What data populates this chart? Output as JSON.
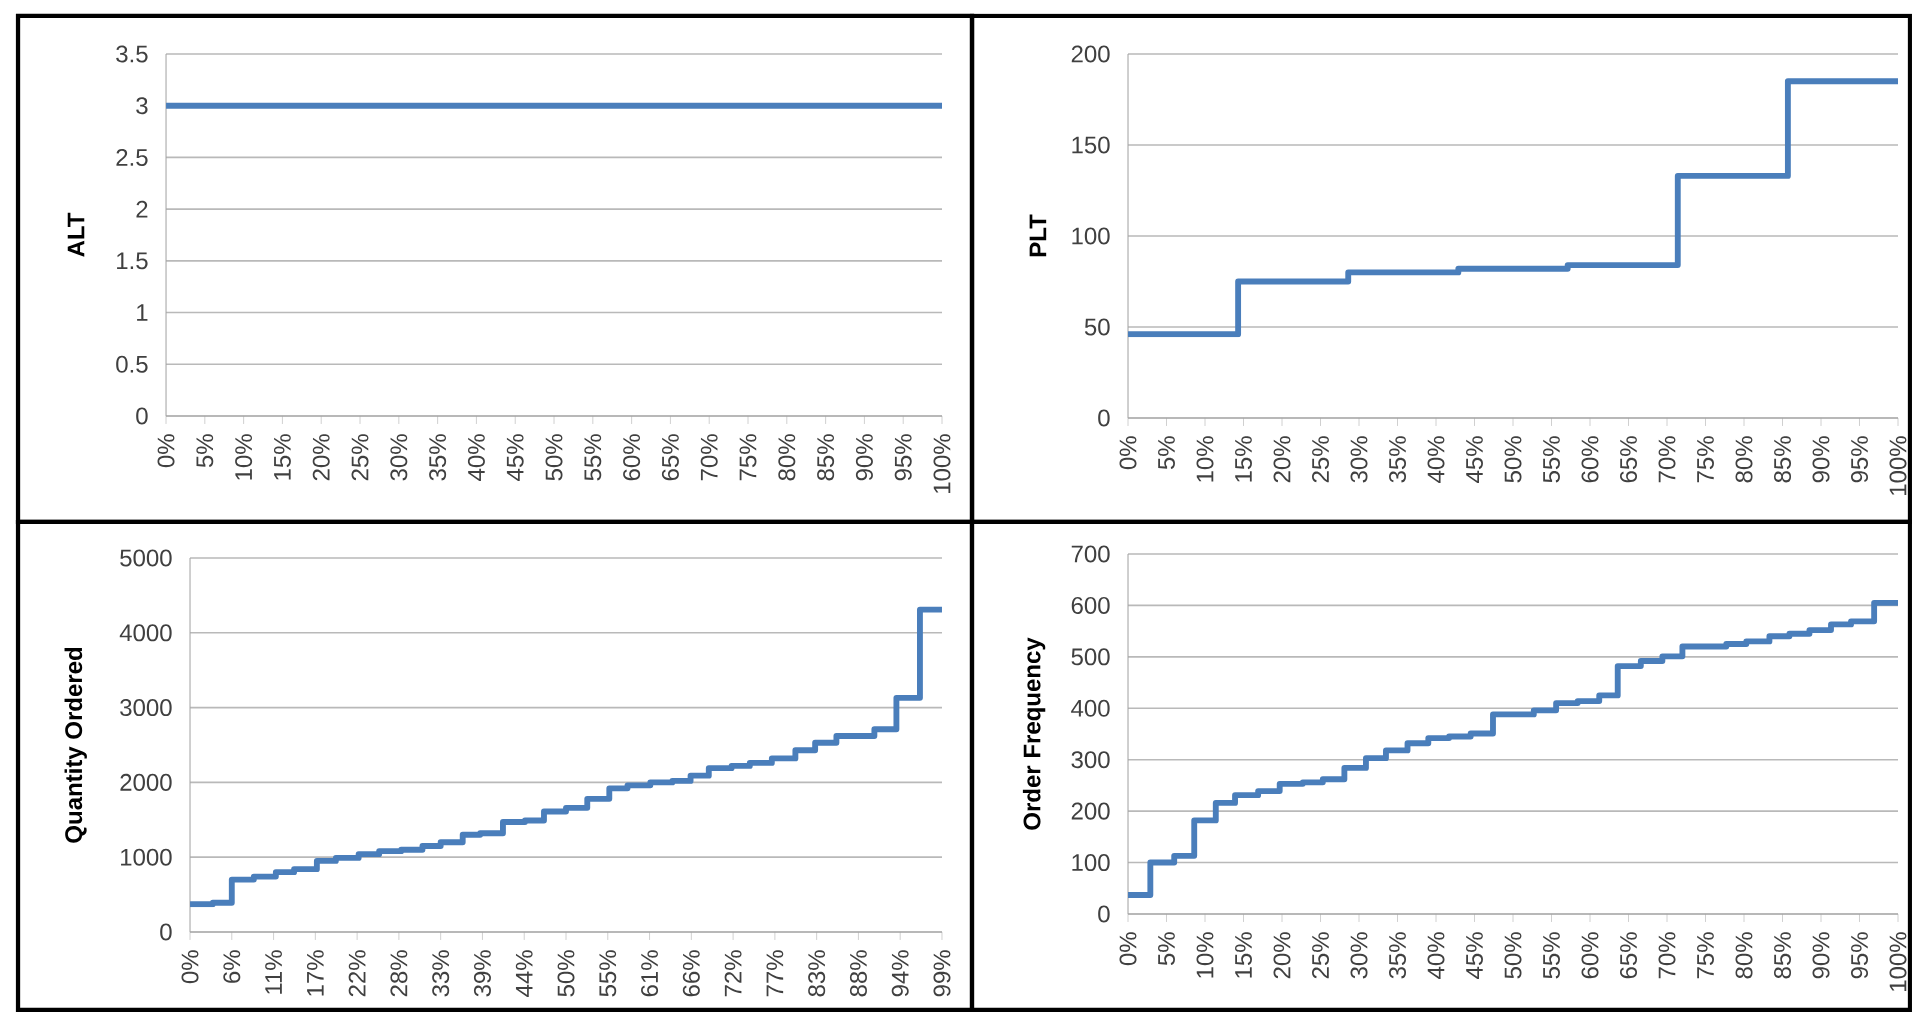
{
  "chart_data": [
    {
      "type": "line",
      "ylabel": "ALT",
      "grid": "y",
      "xlim": [
        0,
        100
      ],
      "ylim": [
        0,
        3.5
      ],
      "yticks": [
        0,
        0.5,
        1,
        1.5,
        2,
        2.5,
        3,
        3.5
      ],
      "xticks": [
        {
          "value": 0,
          "label": "0%"
        },
        {
          "value": 5,
          "label": "5%"
        },
        {
          "value": 10,
          "label": "10%"
        },
        {
          "value": 15,
          "label": "15%"
        },
        {
          "value": 20,
          "label": "20%"
        },
        {
          "value": 25,
          "label": "25%"
        },
        {
          "value": 30,
          "label": "30%"
        },
        {
          "value": 35,
          "label": "35%"
        },
        {
          "value": 40,
          "label": "40%"
        },
        {
          "value": 45,
          "label": "45%"
        },
        {
          "value": 50,
          "label": "50%"
        },
        {
          "value": 55,
          "label": "55%"
        },
        {
          "value": 60,
          "label": "60%"
        },
        {
          "value": 65,
          "label": "65%"
        },
        {
          "value": 70,
          "label": "70%"
        },
        {
          "value": 75,
          "label": "75%"
        },
        {
          "value": 80,
          "label": "80%"
        },
        {
          "value": 85,
          "label": "85%"
        },
        {
          "value": 90,
          "label": "90%"
        },
        {
          "value": 95,
          "label": "95%"
        },
        {
          "value": 100,
          "label": "100%"
        }
      ],
      "series": [
        {
          "color": "#4a7ebb",
          "x": [
            0,
            100
          ],
          "values": [
            3,
            3
          ]
        }
      ]
    },
    {
      "type": "step",
      "ylabel": "PLT",
      "grid": "y",
      "xlim": [
        0,
        100
      ],
      "ylim": [
        0,
        200
      ],
      "yticks": [
        0,
        50,
        100,
        150,
        200
      ],
      "xticks": [
        {
          "value": 0,
          "label": "0%"
        },
        {
          "value": 5,
          "label": "5%"
        },
        {
          "value": 10,
          "label": "10%"
        },
        {
          "value": 15,
          "label": "15%"
        },
        {
          "value": 20,
          "label": "20%"
        },
        {
          "value": 25,
          "label": "25%"
        },
        {
          "value": 30,
          "label": "30%"
        },
        {
          "value": 35,
          "label": "35%"
        },
        {
          "value": 40,
          "label": "40%"
        },
        {
          "value": 45,
          "label": "45%"
        },
        {
          "value": 50,
          "label": "50%"
        },
        {
          "value": 55,
          "label": "55%"
        },
        {
          "value": 60,
          "label": "60%"
        },
        {
          "value": 65,
          "label": "65%"
        },
        {
          "value": 70,
          "label": "70%"
        },
        {
          "value": 75,
          "label": "75%"
        },
        {
          "value": 80,
          "label": "80%"
        },
        {
          "value": 85,
          "label": "85%"
        },
        {
          "value": 90,
          "label": "90%"
        },
        {
          "value": 95,
          "label": "95%"
        },
        {
          "value": 100,
          "label": "100%"
        }
      ],
      "series": [
        {
          "color": "#4a7ebb",
          "x": [
            0,
            14.3,
            28.6,
            42.9,
            57.1,
            71.4,
            85.7,
            100
          ],
          "values": [
            46,
            75,
            80,
            82,
            84,
            133,
            185,
            185
          ]
        }
      ]
    },
    {
      "type": "step",
      "ylabel": "Quantity Ordered",
      "grid": "y",
      "xlim": [
        0,
        99
      ],
      "ylim": [
        0,
        5000
      ],
      "yticks": [
        0,
        1000,
        2000,
        3000,
        4000,
        5000
      ],
      "xticks": [
        {
          "value": 0,
          "label": "0%"
        },
        {
          "value": 5.5,
          "label": "6%"
        },
        {
          "value": 11,
          "label": "11%"
        },
        {
          "value": 16.5,
          "label": "17%"
        },
        {
          "value": 22,
          "label": "22%"
        },
        {
          "value": 27.5,
          "label": "28%"
        },
        {
          "value": 33,
          "label": "33%"
        },
        {
          "value": 38.5,
          "label": "39%"
        },
        {
          "value": 44,
          "label": "44%"
        },
        {
          "value": 49.5,
          "label": "50%"
        },
        {
          "value": 55,
          "label": "55%"
        },
        {
          "value": 60.5,
          "label": "61%"
        },
        {
          "value": 66,
          "label": "66%"
        },
        {
          "value": 71.5,
          "label": "72%"
        },
        {
          "value": 77,
          "label": "77%"
        },
        {
          "value": 82.5,
          "label": "83%"
        },
        {
          "value": 88,
          "label": "88%"
        },
        {
          "value": 93.5,
          "label": "94%"
        },
        {
          "value": 99,
          "label": "99%"
        }
      ],
      "series": [
        {
          "color": "#4a7ebb",
          "x": [
            0,
            3,
            5.5,
            8.4,
            11.3,
            13.7,
            16.7,
            19.2,
            22.2,
            24.9,
            27.8,
            30.6,
            33,
            35.9,
            38.2,
            41.2,
            44.1,
            46.6,
            49.5,
            52.3,
            55.2,
            57.6,
            60.6,
            63.5,
            65.9,
            68.3,
            71.3,
            73.7,
            76.6,
            79.7,
            82.3,
            85.1,
            90.1,
            93,
            96.1,
            99
          ],
          "values": [
            370,
            390,
            700,
            740,
            800,
            840,
            950,
            990,
            1040,
            1080,
            1100,
            1150,
            1200,
            1300,
            1320,
            1470,
            1490,
            1610,
            1660,
            1780,
            1920,
            1960,
            2000,
            2020,
            2090,
            2190,
            2220,
            2260,
            2320,
            2430,
            2530,
            2620,
            2710,
            3130,
            4310,
            4310
          ]
        }
      ]
    },
    {
      "type": "step",
      "ylabel": "Order Frequency",
      "grid": "y",
      "xlim": [
        0,
        100
      ],
      "ylim": [
        0,
        700
      ],
      "yticks": [
        0,
        100,
        200,
        300,
        400,
        500,
        600,
        700
      ],
      "xticks": [
        {
          "value": 0,
          "label": "0%"
        },
        {
          "value": 5,
          "label": "5%"
        },
        {
          "value": 10,
          "label": "10%"
        },
        {
          "value": 15,
          "label": "15%"
        },
        {
          "value": 20,
          "label": "20%"
        },
        {
          "value": 25,
          "label": "25%"
        },
        {
          "value": 30,
          "label": "30%"
        },
        {
          "value": 35,
          "label": "35%"
        },
        {
          "value": 40,
          "label": "40%"
        },
        {
          "value": 45,
          "label": "45%"
        },
        {
          "value": 50,
          "label": "50%"
        },
        {
          "value": 55,
          "label": "55%"
        },
        {
          "value": 60,
          "label": "60%"
        },
        {
          "value": 65,
          "label": "65%"
        },
        {
          "value": 70,
          "label": "70%"
        },
        {
          "value": 75,
          "label": "75%"
        },
        {
          "value": 80,
          "label": "80%"
        },
        {
          "value": 85,
          "label": "85%"
        },
        {
          "value": 90,
          "label": "90%"
        },
        {
          "value": 95,
          "label": "95%"
        },
        {
          "value": 100,
          "label": "100%"
        }
      ],
      "series": [
        {
          "color": "#4a7ebb",
          "x": [
            0,
            2.9,
            6,
            8.6,
            11.4,
            13.9,
            16.9,
            19.7,
            22.7,
            25.3,
            28.1,
            30.9,
            33.5,
            36.3,
            39,
            41.7,
            44.5,
            47.4,
            52.7,
            55.6,
            58.4,
            61.2,
            63.6,
            66.6,
            69.4,
            72,
            77.7,
            80.3,
            83.3,
            85.9,
            88.5,
            91.3,
            93.9,
            96.9,
            100
          ],
          "values": [
            37,
            100,
            113,
            182,
            216,
            231,
            239,
            253,
            256,
            262,
            284,
            303,
            318,
            332,
            342,
            345,
            351,
            388,
            396,
            410,
            414,
            425,
            482,
            492,
            501,
            520,
            525,
            530,
            540,
            545,
            552,
            563,
            569,
            605,
            605
          ]
        }
      ]
    }
  ]
}
